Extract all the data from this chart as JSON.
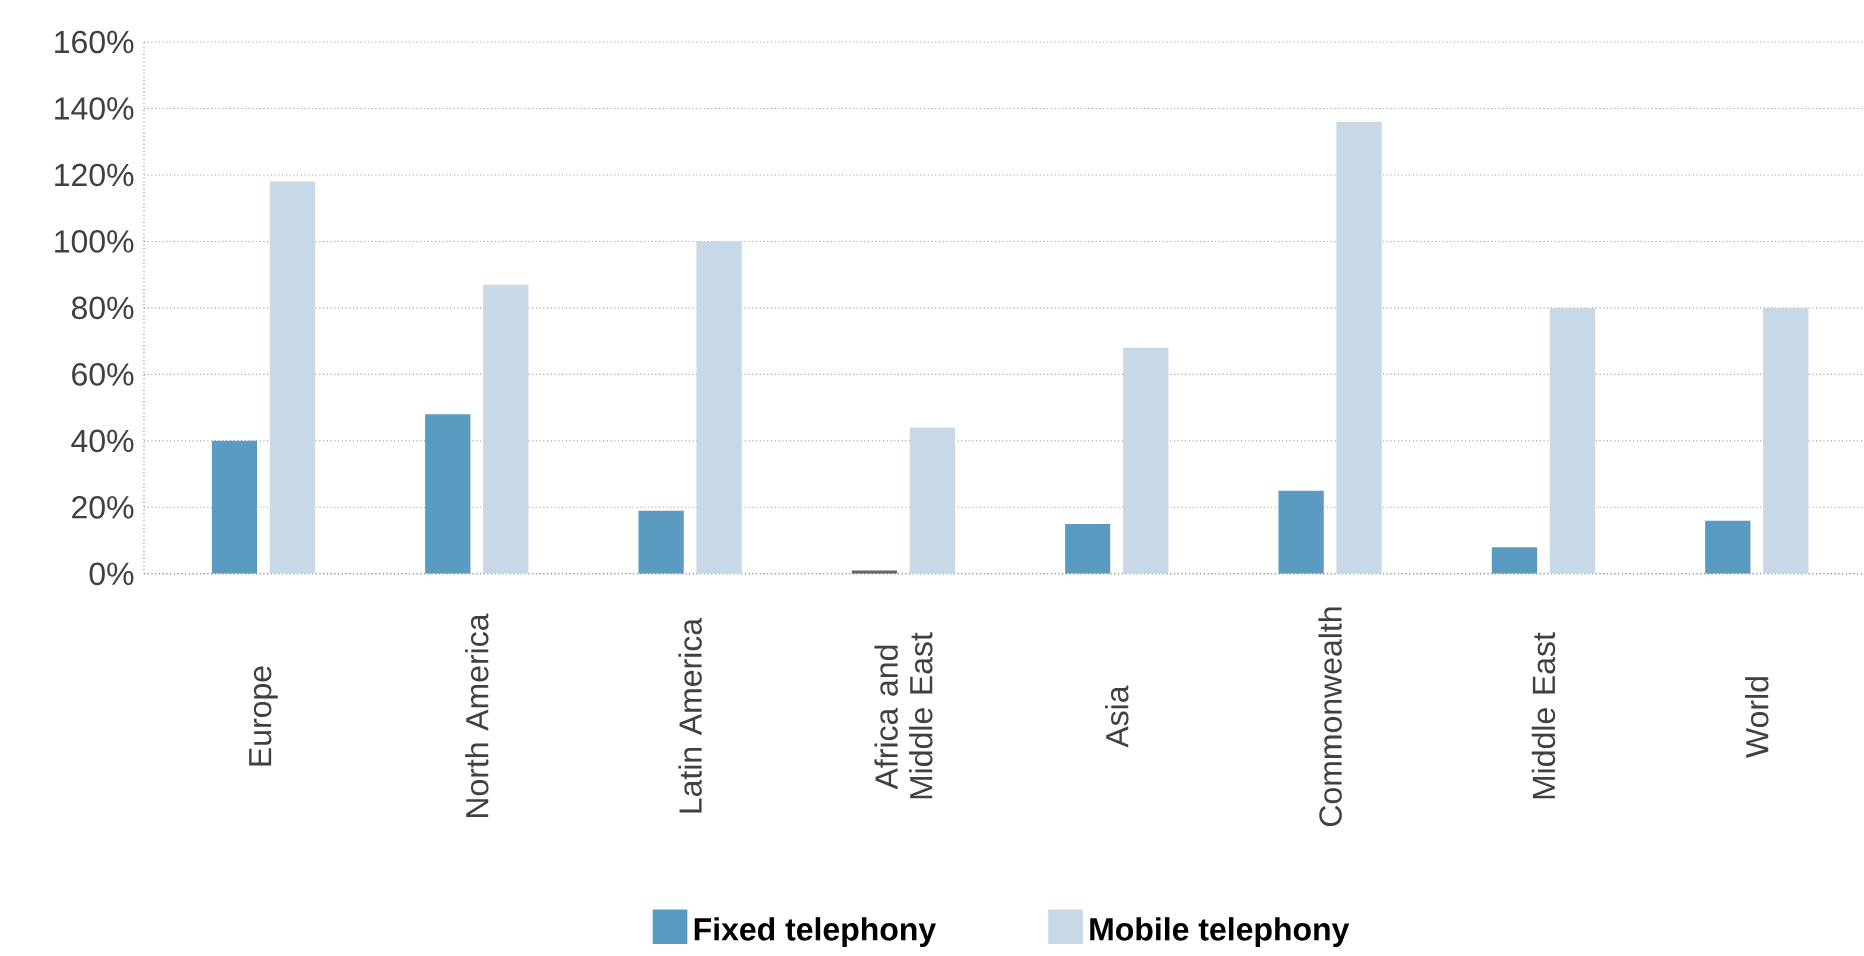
{
  "chart_data": {
    "type": "bar",
    "categories": [
      "Europe",
      "North America",
      "Latin America",
      "Africa and Middle East",
      "Asia",
      "Commonwealth",
      "Middle East",
      "World"
    ],
    "series": [
      {
        "name": "Fixed telephony",
        "color": "#5b9bc1",
        "colors": [
          "#5b9bc1",
          "#5b9bc1",
          "#5b9bc1",
          "#666666",
          "#5b9bc1",
          "#5b9bc1",
          "#5b9bc1",
          "#5b9bc1"
        ],
        "values": [
          40,
          48,
          19,
          1,
          15,
          25,
          8,
          16
        ]
      },
      {
        "name": "Mobile telephony",
        "color": "#c7d9e6",
        "values": [
          118,
          87,
          100,
          44,
          68,
          136,
          80,
          80
        ]
      }
    ],
    "ylim": [
      0,
      160
    ],
    "yticks": [
      {
        "value": 0,
        "label": "0%"
      },
      {
        "value": 20,
        "label": "20%"
      },
      {
        "value": 40,
        "label": "40%"
      },
      {
        "value": 60,
        "label": "60%"
      },
      {
        "value": 80,
        "label": "80%"
      },
      {
        "value": 100,
        "label": "100%"
      },
      {
        "value": 120,
        "label": "120%"
      },
      {
        "value": 140,
        "label": "140%"
      },
      {
        "value": 160,
        "label": "160%"
      }
    ],
    "grid": "y",
    "legend": "bottom"
  }
}
